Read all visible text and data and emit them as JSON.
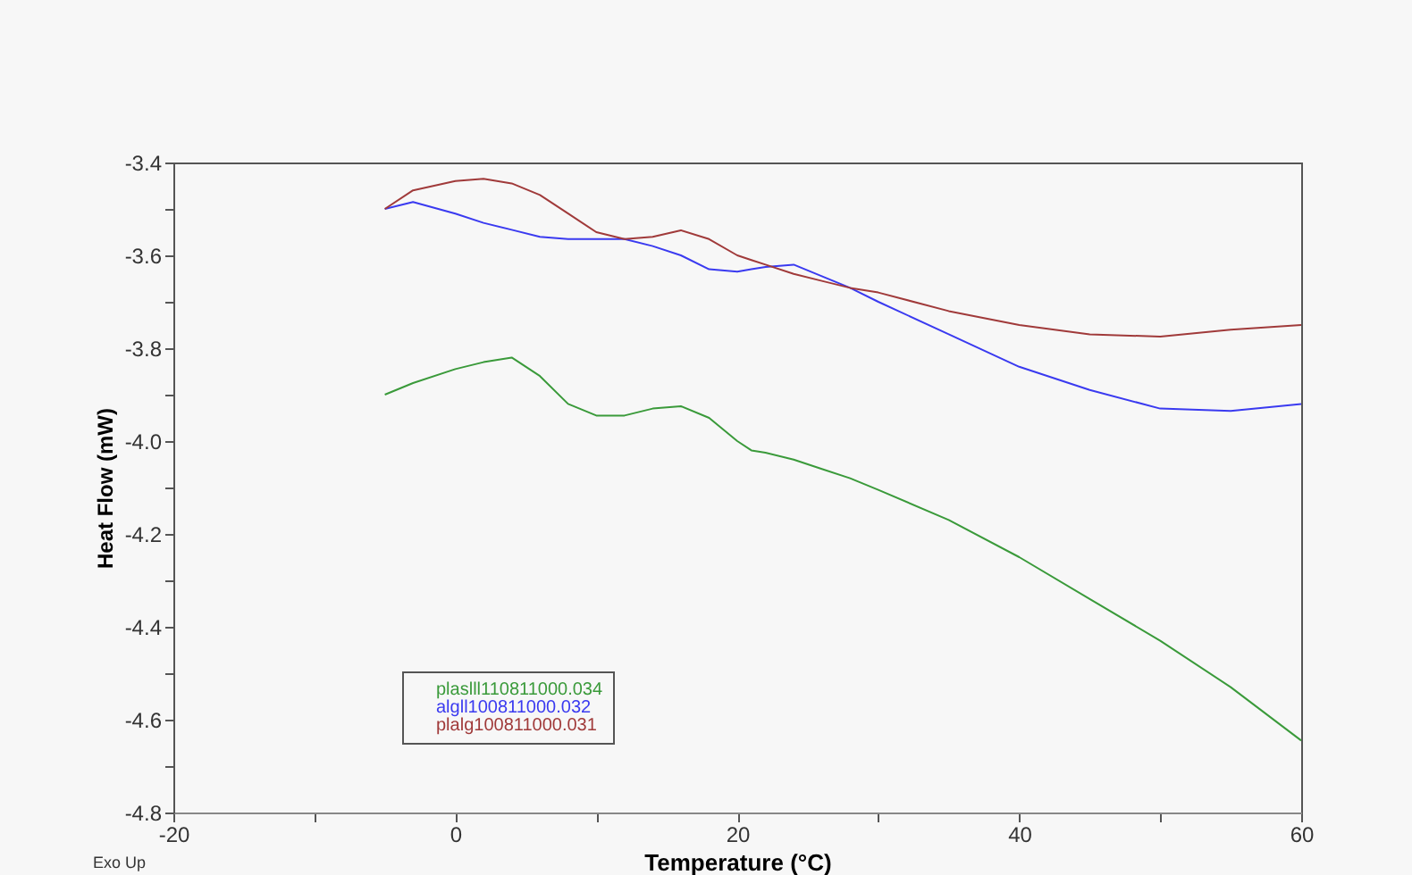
{
  "chart_data": {
    "type": "line",
    "xlabel": "Temperature (°C)",
    "ylabel": "Heat Flow (mW)",
    "annotations": [
      "Exo Up"
    ],
    "xlim": [
      -20,
      60
    ],
    "ylim": [
      -4.8,
      -3.4
    ],
    "xticks": [
      -20,
      {
        "value": -10,
        "label": null
      },
      0,
      {
        "value": 10,
        "label": null
      },
      20,
      {
        "value": 30,
        "label": null
      },
      40,
      {
        "value": 50,
        "label": null
      },
      60
    ],
    "yticks": [
      -4.8,
      {
        "value": -4.7,
        "label": null
      },
      -4.6,
      {
        "value": -4.5,
        "label": null
      },
      -4.4,
      {
        "value": -4.3,
        "label": null
      },
      -4.2,
      {
        "value": -4.1,
        "label": null
      },
      {
        "value": -4.0,
        "label": "-4.0"
      },
      {
        "value": -3.9,
        "label": null
      },
      -3.8,
      {
        "value": -3.7,
        "label": null
      },
      -3.6,
      {
        "value": -3.5,
        "label": null
      },
      -3.4
    ],
    "grid": false,
    "legend": "bottom left",
    "marker": "none",
    "line_style": "solid",
    "x": [
      -5,
      -3,
      0,
      2,
      4,
      6,
      8,
      10,
      12,
      14,
      16,
      18,
      20,
      21,
      22,
      24,
      26,
      28,
      30,
      35,
      40,
      45,
      50,
      55,
      60
    ],
    "series": [
      {
        "name": "plaslll110811000.034",
        "color": "#3a9a3a",
        "values": [
          -3.9,
          -3.875,
          -3.845,
          -3.83,
          -3.82,
          -3.86,
          -3.92,
          -3.945,
          -3.945,
          -3.93,
          -3.925,
          -3.95,
          -4.0,
          -4.02,
          -4.025,
          -4.04,
          -4.06,
          -4.08,
          -4.105,
          -4.17,
          -4.25,
          -4.34,
          -4.43,
          -4.53,
          -4.645
        ]
      },
      {
        "name": "algll100811000.032",
        "color": "#3a3af0",
        "values": [
          -3.5,
          -3.485,
          -3.51,
          -3.53,
          -3.545,
          -3.56,
          -3.565,
          -3.565,
          -3.565,
          -3.58,
          -3.6,
          -3.63,
          -3.635,
          -3.63,
          -3.625,
          -3.62,
          -3.645,
          -3.67,
          -3.7,
          -3.77,
          -3.84,
          -3.89,
          -3.93,
          -3.935,
          -3.92
        ]
      },
      {
        "name": "plalg100811000.031",
        "color": "#a03a3a",
        "values": [
          -3.5,
          -3.46,
          -3.44,
          -3.435,
          -3.445,
          -3.47,
          -3.51,
          -3.55,
          -3.565,
          -3.56,
          -3.546,
          -3.565,
          -3.6,
          -3.61,
          -3.62,
          -3.64,
          -3.655,
          -3.67,
          -3.68,
          -3.72,
          -3.75,
          -3.77,
          -3.775,
          -3.76,
          -3.75
        ]
      }
    ]
  }
}
